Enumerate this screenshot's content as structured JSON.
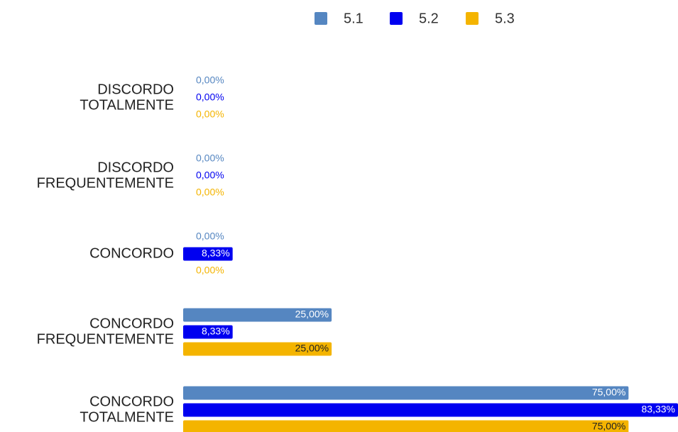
{
  "chart_data": {
    "type": "bar",
    "orientation": "horizontal",
    "categories": [
      [
        "DISCORDO",
        "TOTALMENTE"
      ],
      [
        "DISCORDO",
        "FREQUENTEMENTE"
      ],
      [
        "CONCORDO"
      ],
      [
        "CONCORDO",
        "FREQUENTEMENTE"
      ],
      [
        "CONCORDO",
        "TOTALMENTE"
      ]
    ],
    "series": [
      {
        "name": "5.1",
        "color": "#5586c1",
        "values": [
          0,
          0,
          0,
          25,
          75
        ],
        "value_labels": [
          "0,00%",
          "0,00%",
          "0,00%",
          "25,00%",
          "75,00%"
        ]
      },
      {
        "name": "5.2",
        "color": "#0000f0",
        "values": [
          0,
          0,
          8.33,
          8.33,
          83.33
        ],
        "value_labels": [
          "0,00%",
          "0,00%",
          "8,33%",
          "8,33%",
          "83,33%"
        ]
      },
      {
        "name": "5.3",
        "color": "#f4b400",
        "values": [
          0,
          0,
          0,
          25,
          75
        ],
        "value_labels": [
          "0,00%",
          "0,00%",
          "0,00%",
          "25,00%",
          "75,00%"
        ]
      }
    ],
    "legend": "top"
  }
}
